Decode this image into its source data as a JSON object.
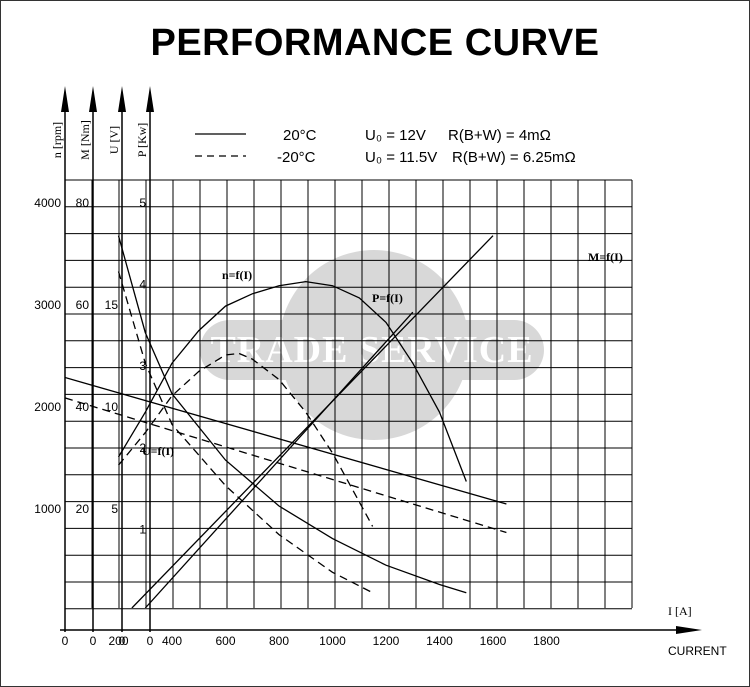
{
  "title": "PERFORMANCE CURVE",
  "watermark": "TRADE SERVICE",
  "legend": [
    {
      "temp": "20°C",
      "voltage": "U₀ = 12V",
      "resistance": "R(B+W) = 4mΩ",
      "style": "solid"
    },
    {
      "temp": "-20°C",
      "voltage": "U₀ = 11.5V",
      "resistance": "R(B+W) = 6.25mΩ",
      "style": "dashed"
    }
  ],
  "chart_data": {
    "type": "line",
    "title": "PERFORMANCE CURVE",
    "xlabel": "I [A]",
    "xcaption": "CURRENT",
    "xlim": [
      0,
      2100
    ],
    "xticks": [
      "0",
      "200",
      "400",
      "600",
      "800",
      "1000",
      "1200",
      "1400",
      "1600",
      "1800"
    ],
    "y_axes": [
      {
        "label": "n [rpm]",
        "ticks": [
          "1000",
          "2000",
          "3000",
          "4000"
        ],
        "values": [
          1000,
          2000,
          3000,
          4000
        ],
        "ylim": [
          0,
          4000
        ]
      },
      {
        "label": "M [Nm]",
        "ticks": [
          "20",
          "40",
          "60",
          "80"
        ],
        "values": [
          20,
          40,
          60,
          80
        ],
        "ylim": [
          0,
          80
        ]
      },
      {
        "label": "U [V]",
        "ticks": [
          "5",
          "10",
          "15"
        ],
        "values": [
          5,
          10,
          15
        ],
        "ylim": [
          0,
          20
        ]
      },
      {
        "label": "P [Kw]",
        "ticks": [
          "1",
          "2",
          "3",
          "4",
          "5"
        ],
        "values": [
          1,
          2,
          3,
          4,
          5
        ],
        "ylim": [
          0,
          5
        ]
      }
    ],
    "grid": true,
    "curve_labels": [
      "n=f(I)",
      "P=f(I)",
      "M=f(I)",
      "U=f(I)"
    ],
    "series": [
      {
        "name": "n=f(I)",
        "condition": "20°C",
        "axis": "n [rpm]",
        "style": "solid",
        "x": [
          200,
          300,
          400,
          600,
          800,
          1000,
          1200,
          1400,
          1500
        ],
        "y": [
          3650,
          2700,
          2100,
          1450,
          1000,
          680,
          420,
          230,
          150
        ]
      },
      {
        "name": "n=f(I)",
        "condition": "-20°C",
        "axis": "n [rpm]",
        "style": "dashed",
        "x": [
          200,
          300,
          400,
          600,
          800,
          1000,
          1150
        ],
        "y": [
          3300,
          2400,
          1800,
          1200,
          720,
          350,
          150
        ]
      },
      {
        "name": "P=f(I)",
        "condition": "20°C",
        "axis": "P [Kw]",
        "style": "solid",
        "x": [
          200,
          300,
          400,
          500,
          600,
          700,
          800,
          900,
          1000,
          1100,
          1200,
          1300,
          1400,
          1500
        ],
        "y": [
          1.85,
          2.4,
          3.0,
          3.4,
          3.7,
          3.85,
          3.95,
          4.0,
          3.95,
          3.8,
          3.5,
          3.0,
          2.4,
          1.55
        ]
      },
      {
        "name": "P=f(I)",
        "condition": "-20°C",
        "axis": "P [Kw]",
        "style": "dashed",
        "x": [
          200,
          300,
          400,
          500,
          600,
          650,
          700,
          800,
          900,
          1000,
          1100,
          1150
        ],
        "y": [
          1.75,
          2.15,
          2.6,
          2.9,
          3.1,
          3.12,
          3.05,
          2.8,
          2.4,
          1.9,
          1.3,
          1.0
        ]
      },
      {
        "name": "M=f(I)",
        "condition": "20°C",
        "axis": "M [Nm]",
        "style": "solid",
        "x": [
          250,
          1600
        ],
        "y": [
          0,
          73
        ]
      },
      {
        "name": "M=f(I)",
        "condition": "-20°C",
        "axis": "M [Nm]",
        "style": "solid",
        "x": [
          300,
          1300
        ],
        "y": [
          0,
          58
        ]
      },
      {
        "name": "U=f(I)",
        "condition": "20°C",
        "axis": "U [V]",
        "style": "solid",
        "x": [
          0,
          1650
        ],
        "y": [
          11.3,
          5.1
        ]
      },
      {
        "name": "U=f(I)",
        "condition": "-20°C",
        "axis": "U [V]",
        "style": "dashed",
        "x": [
          0,
          1650
        ],
        "y": [
          10.3,
          3.7
        ]
      }
    ]
  }
}
